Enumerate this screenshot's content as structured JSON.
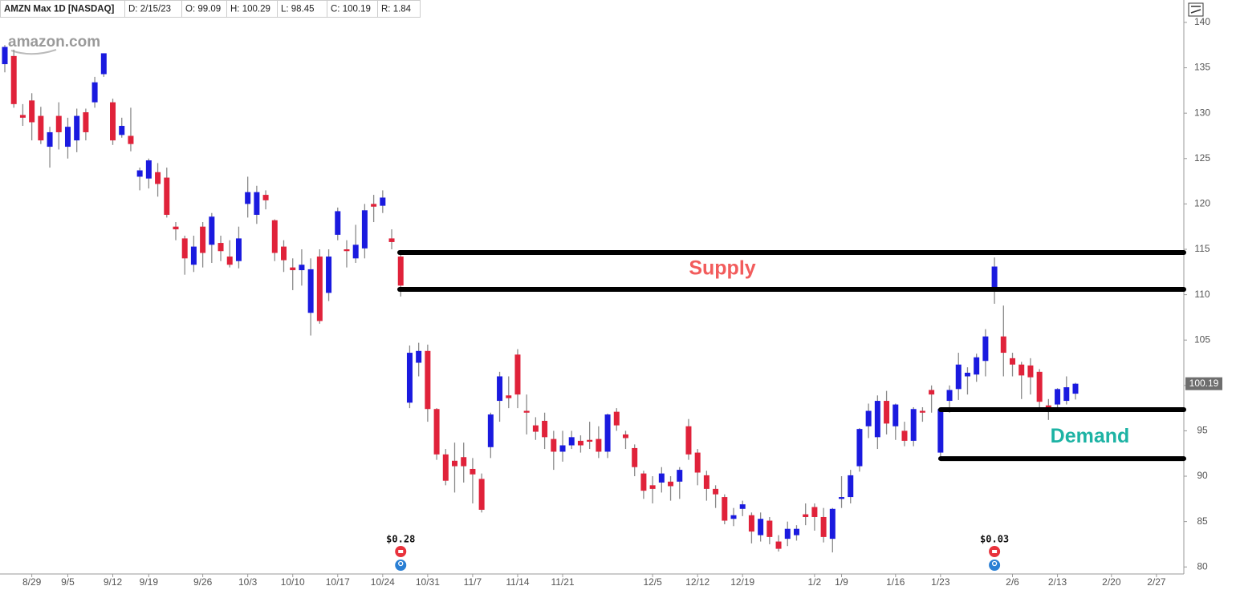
{
  "chart_data": {
    "type": "candlestick",
    "header": [
      "AMZN Max 1D [NASDAQ]",
      "D: 2/15/23",
      "O: 99.09",
      "H: 100.29",
      "L: 98.45",
      "C: 100.19",
      "R: 1.84"
    ],
    "logo": "amazon.com",
    "up_color": "#1a1adf",
    "down_color": "#e0223a",
    "wick_color": "#8a8a8a",
    "ylim": [
      79.2,
      140.5
    ],
    "yticks": [
      80,
      85,
      90,
      95,
      100,
      105,
      110,
      115,
      120,
      125,
      130,
      135,
      140
    ],
    "last_price": 100.19,
    "categories": [
      null,
      null,
      null,
      "8/29",
      null,
      null,
      null,
      "9/5",
      null,
      null,
      null,
      null,
      "9/12",
      null,
      null,
      null,
      "9/19",
      null,
      null,
      null,
      null,
      null,
      "9/26",
      null,
      null,
      null,
      null,
      "10/3",
      null,
      null,
      null,
      null,
      "10/10",
      null,
      null,
      null,
      null,
      "10/17",
      null,
      null,
      null,
      null,
      "10/24",
      null,
      null,
      null,
      null,
      "10/31",
      null,
      null,
      null,
      null,
      "11/7",
      null,
      null,
      null,
      null,
      "11/14",
      null,
      null,
      null,
      null,
      "11/21",
      null,
      null,
      null,
      null,
      null,
      null,
      null,
      null,
      null,
      "12/5",
      null,
      null,
      null,
      null,
      "12/12",
      null,
      null,
      null,
      null,
      "12/19",
      null,
      null,
      null,
      null,
      null,
      null,
      null,
      "1/2",
      null,
      null,
      "1/9",
      null,
      null,
      null,
      null,
      null,
      "1/16",
      null,
      null,
      null,
      null,
      "1/23",
      null,
      null,
      null,
      null,
      null,
      null,
      null,
      "2/6",
      null,
      null,
      null,
      null,
      "2/13",
      null,
      null,
      null,
      null,
      null,
      "2/20",
      null,
      null,
      null,
      null,
      "2/27"
    ],
    "open": [
      135.4,
      136.3,
      129.8,
      131.4,
      129.7,
      126.3,
      129.7,
      126.3,
      127,
      130.1,
      131.2,
      134.3,
      131.2,
      127.6,
      127.5,
      123.0,
      122.8,
      123.5,
      122.9,
      117.5,
      116.2,
      113.3,
      117.5,
      115.5,
      115.7,
      114.2,
      113.7,
      120.0,
      118.8,
      121,
      118.2,
      115.3,
      113.0,
      112.7,
      108.0,
      114.2,
      110.2,
      116.6,
      115.0,
      114.0,
      115.1,
      120.0,
      119.8,
      116.2,
      114.2,
      98.1,
      102.5,
      103.8,
      97.4,
      92.4,
      91.7,
      92.1,
      90.8,
      89.7,
      93.2,
      98.3,
      98.9,
      103.4,
      97.2,
      95.6,
      96.1,
      94.1,
      92.7,
      93.4,
      93.9,
      94.0,
      94.1,
      92.7,
      97.1,
      94.6,
      93.1,
      90.3,
      89.0,
      89.3,
      89.4,
      89.4,
      95.5,
      92.6,
      90.1,
      88.6,
      87.7,
      85.3,
      86.4,
      85.7,
      83.5,
      85.1,
      82.8,
      83.1,
      83.5,
      85.8,
      86.6,
      85.5,
      83.1,
      87.5,
      87.7,
      91.1,
      95.5,
      94.3,
      98.3,
      95.5,
      95.0,
      93.9,
      97.2,
      99.5,
      92.6,
      98.3,
      99.6,
      101,
      101.2,
      102.7,
      110.8,
      105.4,
      103.0,
      102.3,
      102.2,
      101.5,
      97.8,
      97.9,
      98.3,
      99.09,
      null,
      null,
      null,
      null,
      null,
      null,
      null,
      null,
      null
    ],
    "high": [
      137.5,
      137,
      131,
      132.2,
      130.7,
      128.5,
      131.2,
      129.5,
      130.5,
      130.5,
      134,
      136.6,
      131.6,
      129.5,
      130.6,
      124,
      125,
      124.5,
      124,
      118,
      116.5,
      116.5,
      118,
      119,
      116.5,
      116,
      117.5,
      123,
      122,
      121.5,
      118.3,
      116,
      114,
      115,
      114,
      115,
      115,
      119.6,
      116,
      117.7,
      120,
      121,
      121.5,
      117.2,
      114.5,
      104.4,
      104.7,
      104.5,
      97.5,
      93,
      93.7,
      93.7,
      92,
      90.3,
      97,
      101.5,
      101,
      104,
      99,
      96.5,
      97,
      95,
      95,
      95,
      94.5,
      96,
      95.5,
      96.9,
      97.5,
      95,
      93.5,
      90.6,
      90,
      91,
      90,
      91,
      96.3,
      93,
      90.6,
      89,
      88,
      86.5,
      87.3,
      86,
      86,
      85.5,
      83.5,
      85,
      84.6,
      87,
      87,
      86.5,
      86.5,
      90,
      90.7,
      95.3,
      98,
      98.9,
      99.4,
      98,
      96,
      97.6,
      97.6,
      100,
      97.5,
      100,
      103.6,
      102,
      103.5,
      106.2,
      114.1,
      108.8,
      103.6,
      102.6,
      103,
      101.8,
      98.5,
      99.7,
      101,
      100.29,
      null,
      null,
      null,
      null,
      null,
      null,
      null,
      null,
      null
    ],
    "low": [
      134.5,
      130.6,
      128.6,
      127,
      126.6,
      124,
      126,
      125,
      125.7,
      127,
      130.6,
      134,
      126.5,
      127.3,
      125.8,
      121.5,
      121.7,
      120.8,
      118.5,
      116,
      112.2,
      112.5,
      113,
      113.5,
      113.7,
      113,
      112.9,
      118.5,
      117.8,
      119.4,
      113.7,
      112.5,
      110.5,
      111,
      105.5,
      106.8,
      109.3,
      116,
      113,
      113.5,
      114,
      118,
      119,
      115,
      109.8,
      97.5,
      101,
      96,
      91.8,
      89,
      88.2,
      89.3,
      87,
      86,
      92,
      96,
      97.5,
      97.5,
      94.6,
      94,
      93,
      90.7,
      91.6,
      93,
      92.6,
      93,
      92,
      92,
      95,
      93,
      90,
      87.5,
      87,
      88.2,
      87.3,
      87.5,
      91.8,
      89,
      87.3,
      86.5,
      84.7,
      84.5,
      85.6,
      82.6,
      82.8,
      82.5,
      81.7,
      82.3,
      82.9,
      84.6,
      84,
      82.7,
      81.6,
      86.5,
      87,
      90.5,
      94.2,
      93,
      94.6,
      94,
      93.3,
      93.3,
      96,
      97,
      91.8,
      97,
      98.4,
      99,
      100.4,
      101,
      109,
      101,
      101,
      98.5,
      99,
      97.4,
      96.2,
      97.3,
      97.9,
      98.45,
      null,
      null,
      null,
      null,
      null,
      null,
      null,
      null,
      null
    ],
    "close": [
      137.3,
      131.0,
      129.5,
      129.0,
      127.0,
      127.9,
      127.9,
      128.5,
      129.7,
      127.9,
      133.4,
      136.6,
      127.0,
      128.6,
      126.6,
      123.7,
      124.8,
      122.2,
      118.8,
      117.2,
      114.0,
      115.3,
      114.6,
      118.6,
      114.8,
      113.3,
      116.2,
      121.3,
      121.3,
      120.4,
      114.6,
      113.8,
      112.7,
      113.3,
      112.8,
      107.1,
      114.2,
      119.2,
      114.8,
      115.5,
      119.3,
      119.7,
      120.7,
      115.8,
      111.0,
      103.6,
      103.8,
      97.4,
      92.4,
      89.5,
      91.1,
      91.1,
      90.2,
      86.3,
      96.8,
      101.0,
      98.6,
      99.0,
      97.0,
      94.9,
      94.3,
      92.7,
      93.4,
      94.3,
      93.4,
      93.8,
      92.7,
      96.8,
      95.6,
      94.2,
      91.0,
      88.4,
      88.6,
      90.3,
      88.9,
      90.7,
      92.4,
      90.4,
      88.6,
      88.0,
      85.1,
      85.7,
      86.9,
      83.9,
      85.3,
      83.3,
      82.0,
      84.2,
      84.2,
      85.5,
      85.5,
      83.3,
      86.4,
      87.7,
      90.1,
      95.2,
      97.2,
      98.3,
      95.8,
      97.9,
      93.9,
      97.4,
      97.0,
      99.0,
      97.4,
      99.5,
      102.3,
      101.4,
      103.1,
      105.4,
      113.1,
      103.6,
      102.3,
      101.1,
      100.9,
      98.2,
      97.6,
      99.6,
      99.8,
      100.19,
      null,
      null,
      null,
      null,
      null,
      null,
      null,
      null,
      null
    ],
    "events": [
      {
        "label": "$0.28"
      },
      {
        "label": "$0.03"
      }
    ],
    "annotations": [
      {
        "text": "Supply",
        "color": "#f25c5c",
        "top": 114.65,
        "bottom": 110.58
      },
      {
        "text": "Demand",
        "color": "#1db3a4",
        "top": 97.33,
        "bottom": 91.94
      }
    ]
  }
}
